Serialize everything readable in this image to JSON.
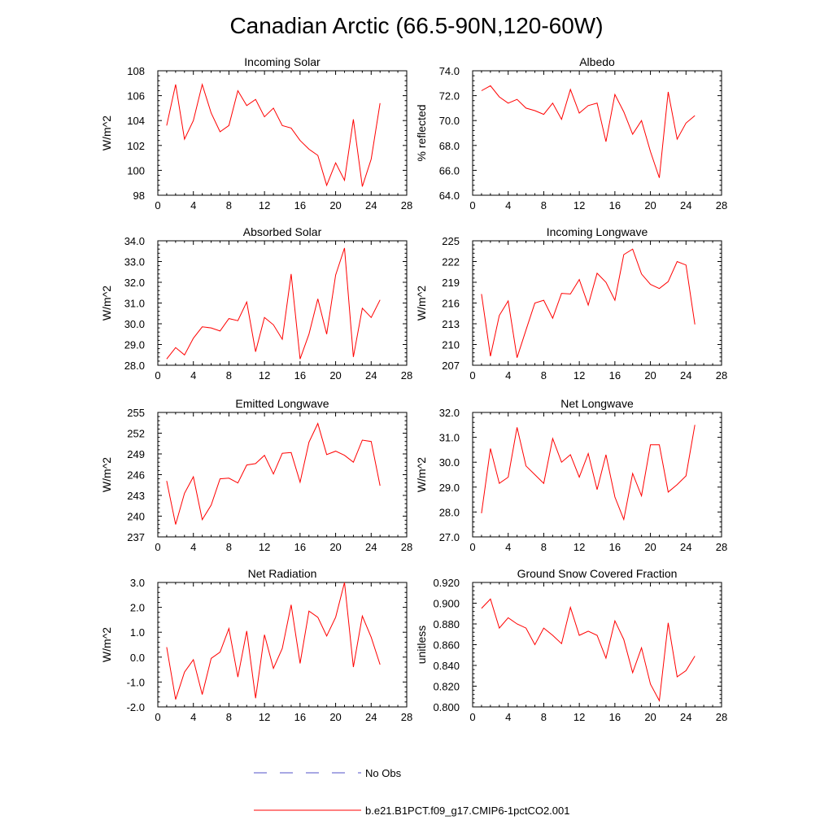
{
  "figure": {
    "title": "Canadian Arctic (66.5-90N,120-60W)",
    "line_color": "#ff0000",
    "obs_color": "#5050c8"
  },
  "legend": {
    "obs_label": "No Obs",
    "model_label": "b.e21.B1PCT.f09_g17.CMIP6-1pctCO2.001"
  },
  "chart_data": [
    {
      "type": "line",
      "title": "Incoming Solar",
      "ylabel": "W/m^2",
      "xlim": [
        0,
        28
      ],
      "xticks": [
        0,
        4,
        8,
        12,
        16,
        20,
        24,
        28
      ],
      "ylim": [
        98,
        108
      ],
      "yticks": [
        98,
        100,
        102,
        104,
        106,
        108
      ],
      "ytick_decimals": 0,
      "x": [
        1,
        2,
        3,
        4,
        5,
        6,
        7,
        8,
        9,
        10,
        11,
        12,
        13,
        14,
        15,
        16,
        17,
        18,
        19,
        20,
        21,
        22,
        23,
        24,
        25
      ],
      "series": [
        {
          "values": [
            103.6,
            106.9,
            102.5,
            104.0,
            106.9,
            104.6,
            103.1,
            103.6,
            106.4,
            105.2,
            105.7,
            104.3,
            105.0,
            103.6,
            103.4,
            102.4,
            101.7,
            101.2,
            98.8,
            100.6,
            99.2,
            104.1,
            98.7,
            100.9,
            105.4
          ]
        }
      ]
    },
    {
      "type": "line",
      "title": "Albedo",
      "ylabel": "% reflected",
      "xlim": [
        0,
        28
      ],
      "xticks": [
        0,
        4,
        8,
        12,
        16,
        20,
        24,
        28
      ],
      "ylim": [
        64,
        74
      ],
      "yticks": [
        64,
        66,
        68,
        70,
        72,
        74
      ],
      "ytick_decimals": 1,
      "x": [
        1,
        2,
        3,
        4,
        5,
        6,
        7,
        8,
        9,
        10,
        11,
        12,
        13,
        14,
        15,
        16,
        17,
        18,
        19,
        20,
        21,
        22,
        23,
        24,
        25
      ],
      "series": [
        {
          "values": [
            72.4,
            72.8,
            71.9,
            71.4,
            71.7,
            71.0,
            70.8,
            70.5,
            71.4,
            70.1,
            72.5,
            70.6,
            71.2,
            71.4,
            68.3,
            72.1,
            70.7,
            68.9,
            70.0,
            67.5,
            65.4,
            72.3,
            68.5,
            69.8,
            70.4
          ]
        }
      ]
    },
    {
      "type": "line",
      "title": "Absorbed Solar",
      "ylabel": "W/m^2",
      "xlim": [
        0,
        28
      ],
      "xticks": [
        0,
        4,
        8,
        12,
        16,
        20,
        24,
        28
      ],
      "ylim": [
        28,
        34
      ],
      "yticks": [
        28,
        29,
        30,
        31,
        32,
        33,
        34
      ],
      "ytick_decimals": 1,
      "x": [
        1,
        2,
        3,
        4,
        5,
        6,
        7,
        8,
        9,
        10,
        11,
        12,
        13,
        14,
        15,
        16,
        17,
        18,
        19,
        20,
        21,
        22,
        23,
        24,
        25
      ],
      "series": [
        {
          "values": [
            28.3,
            28.85,
            28.5,
            29.3,
            29.85,
            29.8,
            29.65,
            30.25,
            30.15,
            31.05,
            28.65,
            30.3,
            29.95,
            29.25,
            32.4,
            28.3,
            29.5,
            31.2,
            29.5,
            32.35,
            33.65,
            28.4,
            30.75,
            30.3,
            31.15
          ]
        }
      ]
    },
    {
      "type": "line",
      "title": "Incoming Longwave",
      "ylabel": "W/m^2",
      "xlim": [
        0,
        28
      ],
      "xticks": [
        0,
        4,
        8,
        12,
        16,
        20,
        24,
        28
      ],
      "ylim": [
        207,
        225
      ],
      "yticks": [
        207,
        210,
        213,
        216,
        219,
        222,
        225
      ],
      "ytick_decimals": 0,
      "x": [
        1,
        2,
        3,
        4,
        5,
        6,
        7,
        8,
        9,
        10,
        11,
        12,
        13,
        14,
        15,
        16,
        17,
        18,
        19,
        20,
        21,
        22,
        23,
        24,
        25
      ],
      "series": [
        {
          "values": [
            217.3,
            208.3,
            214.2,
            216.3,
            208.1,
            212.1,
            216.0,
            216.4,
            213.8,
            217.4,
            217.3,
            219.4,
            215.7,
            220.3,
            219.0,
            216.4,
            223.0,
            223.8,
            220.2,
            218.7,
            218.1,
            219.1,
            222.0,
            221.5,
            212.9
          ]
        }
      ]
    },
    {
      "type": "line",
      "title": "Emitted Longwave",
      "ylabel": "W/m^2",
      "xlim": [
        0,
        28
      ],
      "xticks": [
        0,
        4,
        8,
        12,
        16,
        20,
        24,
        28
      ],
      "ylim": [
        237,
        255
      ],
      "yticks": [
        237,
        240,
        243,
        246,
        249,
        252,
        255
      ],
      "ytick_decimals": 0,
      "x": [
        1,
        2,
        3,
        4,
        5,
        6,
        7,
        8,
        9,
        10,
        11,
        12,
        13,
        14,
        15,
        16,
        17,
        18,
        19,
        20,
        21,
        22,
        23,
        24,
        25
      ],
      "series": [
        {
          "values": [
            245.1,
            238.8,
            243.3,
            245.7,
            239.5,
            241.6,
            245.4,
            245.5,
            244.8,
            247.4,
            247.6,
            248.8,
            246.1,
            249.1,
            249.2,
            244.9,
            250.7,
            253.4,
            248.9,
            249.4,
            248.8,
            247.8,
            251.0,
            250.8,
            244.4
          ]
        }
      ]
    },
    {
      "type": "line",
      "title": "Net Longwave",
      "ylabel": "W/m^2",
      "xlim": [
        0,
        28
      ],
      "xticks": [
        0,
        4,
        8,
        12,
        16,
        20,
        24,
        28
      ],
      "ylim": [
        27,
        32
      ],
      "yticks": [
        27,
        28,
        29,
        30,
        31,
        32
      ],
      "ytick_decimals": 1,
      "x": [
        1,
        2,
        3,
        4,
        5,
        6,
        7,
        8,
        9,
        10,
        11,
        12,
        13,
        14,
        15,
        16,
        17,
        18,
        19,
        20,
        21,
        22,
        23,
        24,
        25
      ],
      "series": [
        {
          "values": [
            27.95,
            30.55,
            29.15,
            29.4,
            31.4,
            29.85,
            29.5,
            29.15,
            30.95,
            30.0,
            30.3,
            29.4,
            30.35,
            28.9,
            30.3,
            28.6,
            27.7,
            29.55,
            28.65,
            30.7,
            30.7,
            28.8,
            29.1,
            29.45,
            31.5
          ]
        }
      ]
    },
    {
      "type": "line",
      "title": "Net Radiation",
      "ylabel": "W/m^2",
      "xlim": [
        0,
        28
      ],
      "xticks": [
        0,
        4,
        8,
        12,
        16,
        20,
        24,
        28
      ],
      "ylim": [
        -2,
        3
      ],
      "yticks": [
        -2,
        -1,
        0,
        1,
        2,
        3
      ],
      "ytick_decimals": 1,
      "x": [
        1,
        2,
        3,
        4,
        5,
        6,
        7,
        8,
        9,
        10,
        11,
        12,
        13,
        14,
        15,
        16,
        17,
        18,
        19,
        20,
        21,
        22,
        23,
        24,
        25
      ],
      "series": [
        {
          "values": [
            0.4,
            -1.7,
            -0.6,
            -0.1,
            -1.5,
            -0.05,
            0.2,
            1.15,
            -0.8,
            1.05,
            -1.65,
            0.9,
            -0.45,
            0.35,
            2.1,
            -0.25,
            1.85,
            1.6,
            0.85,
            1.6,
            3.0,
            -0.4,
            1.65,
            0.8,
            -0.3
          ]
        }
      ]
    },
    {
      "type": "line",
      "title": "Ground Snow Covered Fraction",
      "ylabel": "unitless",
      "xlim": [
        0,
        28
      ],
      "xticks": [
        0,
        4,
        8,
        12,
        16,
        20,
        24,
        28
      ],
      "ylim": [
        0.8,
        0.92
      ],
      "yticks": [
        0.8,
        0.82,
        0.84,
        0.86,
        0.88,
        0.9,
        0.92
      ],
      "ytick_decimals": 3,
      "x": [
        1,
        2,
        3,
        4,
        5,
        6,
        7,
        8,
        9,
        10,
        11,
        12,
        13,
        14,
        15,
        16,
        17,
        18,
        19,
        20,
        21,
        22,
        23,
        24,
        25
      ],
      "series": [
        {
          "values": [
            0.895,
            0.904,
            0.876,
            0.886,
            0.88,
            0.876,
            0.86,
            0.876,
            0.869,
            0.861,
            0.896,
            0.869,
            0.873,
            0.869,
            0.847,
            0.883,
            0.865,
            0.833,
            0.857,
            0.822,
            0.806,
            0.881,
            0.829,
            0.835,
            0.849
          ]
        }
      ]
    }
  ]
}
